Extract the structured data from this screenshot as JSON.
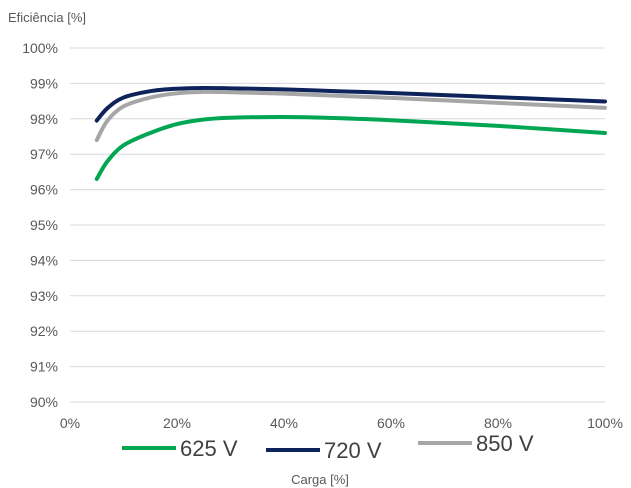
{
  "chart_data": {
    "type": "line",
    "title": "",
    "ylabel": "Eficiência [%]",
    "xlabel": "Carga [%]",
    "xlim": [
      0,
      100
    ],
    "ylim": [
      90,
      100
    ],
    "x_ticks": [
      0,
      20,
      40,
      60,
      80,
      100
    ],
    "x_tick_labels": [
      "0%",
      "20%",
      "40%",
      "60%",
      "80%",
      "100%"
    ],
    "y_ticks": [
      90,
      91,
      92,
      93,
      94,
      95,
      96,
      97,
      98,
      99,
      100
    ],
    "y_tick_labels": [
      "90%",
      "91%",
      "92%",
      "93%",
      "94%",
      "95%",
      "96%",
      "97%",
      "98%",
      "99%",
      "100%"
    ],
    "grid": "horizontal",
    "legend_position": "bottom",
    "series": [
      {
        "name": "625 V",
        "color": "#00a651",
        "x": [
          5,
          7,
          10,
          15,
          20,
          25,
          30,
          40,
          50,
          60,
          70,
          80,
          90,
          100
        ],
        "y": [
          96.3,
          96.8,
          97.25,
          97.6,
          97.85,
          97.98,
          98.03,
          98.05,
          98.02,
          97.96,
          97.88,
          97.8,
          97.7,
          97.6
        ]
      },
      {
        "name": "720 V",
        "color": "#0d2359",
        "x": [
          5,
          7,
          10,
          15,
          20,
          25,
          30,
          40,
          50,
          60,
          70,
          80,
          90,
          100
        ],
        "y": [
          97.95,
          98.3,
          98.6,
          98.78,
          98.85,
          98.87,
          98.86,
          98.83,
          98.78,
          98.73,
          98.67,
          98.61,
          98.55,
          98.49
        ]
      },
      {
        "name": "850 V",
        "color": "#a6a6a6",
        "x": [
          5,
          7,
          10,
          15,
          20,
          25,
          30,
          40,
          50,
          60,
          70,
          80,
          90,
          100
        ],
        "y": [
          97.4,
          97.95,
          98.35,
          98.6,
          98.72,
          98.76,
          98.75,
          98.71,
          98.65,
          98.59,
          98.52,
          98.45,
          98.38,
          98.31
        ]
      }
    ]
  }
}
